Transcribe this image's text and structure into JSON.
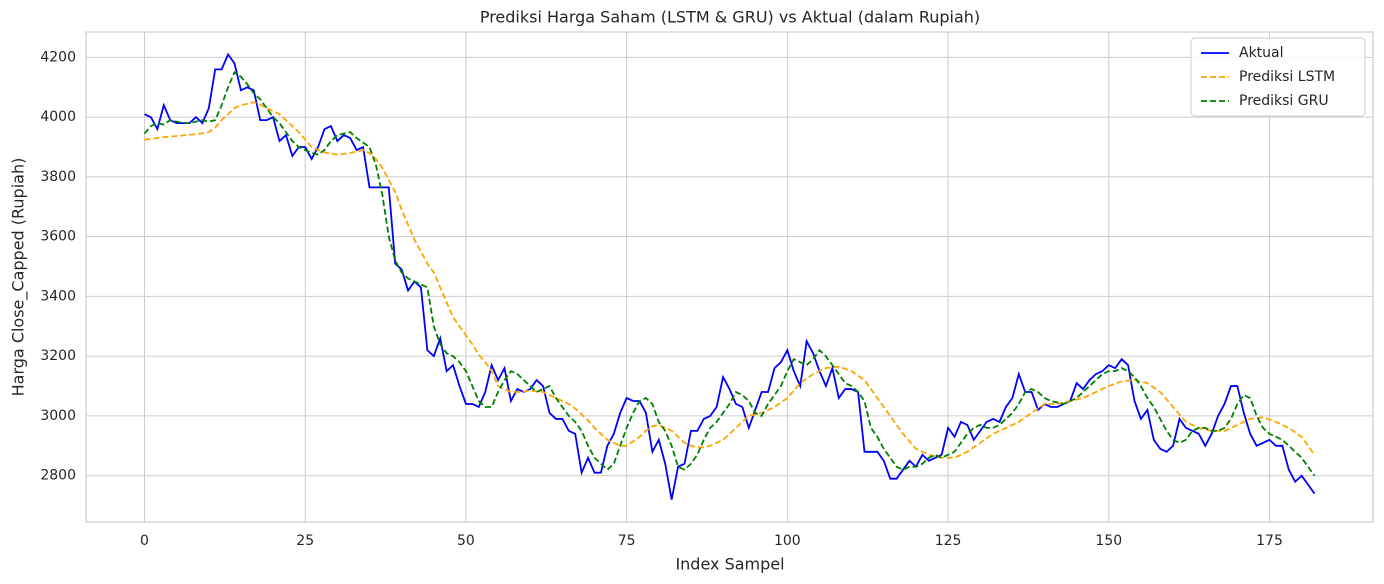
{
  "chart_data": {
    "type": "line",
    "title": "Prediksi Harga Saham (LSTM & GRU) vs Aktual (dalam Rupiah)",
    "xlabel": "Index Sampel",
    "ylabel": "Harga Close_Capped (Rupiah)",
    "x": [
      0,
      1,
      2,
      3,
      4,
      5,
      6,
      7,
      8,
      9,
      10,
      11,
      12,
      13,
      14,
      15,
      16,
      17,
      18,
      19,
      20,
      21,
      22,
      23,
      24,
      25,
      26,
      27,
      28,
      29,
      30,
      31,
      32,
      33,
      34,
      35,
      36,
      37,
      38,
      39,
      40,
      41,
      42,
      43,
      44,
      45,
      46,
      47,
      48,
      49,
      50,
      51,
      52,
      53,
      54,
      55,
      56,
      57,
      58,
      59,
      60,
      61,
      62,
      63,
      64,
      65,
      66,
      67,
      68,
      69,
      70,
      71,
      72,
      73,
      74,
      75,
      76,
      77,
      78,
      79,
      80,
      81,
      82,
      83,
      84,
      85,
      86,
      87,
      88,
      89,
      90,
      91,
      92,
      93,
      94,
      95,
      96,
      97,
      98,
      99,
      100,
      101,
      102,
      103,
      104,
      105,
      106,
      107,
      108,
      109,
      110,
      111,
      112,
      113,
      114,
      115,
      116,
      117,
      118,
      119,
      120,
      121,
      122,
      123,
      124,
      125,
      126,
      127,
      128,
      129,
      130,
      131,
      132,
      133,
      134,
      135,
      136,
      137,
      138,
      139,
      140,
      141,
      142,
      143,
      144,
      145,
      146,
      147,
      148,
      149,
      150,
      151,
      152,
      153,
      154,
      155,
      156,
      157,
      158,
      159,
      160,
      161,
      162,
      163,
      164,
      165,
      166,
      167,
      168,
      169,
      170,
      171,
      172,
      173,
      174,
      175,
      176,
      177,
      178,
      179,
      180,
      181,
      182
    ],
    "series": [
      {
        "name": "Aktual",
        "color": "#0000ff",
        "linestyle": "solid",
        "values": [
          4010,
          4000,
          3960,
          4040,
          3990,
          3980,
          3980,
          3980,
          4000,
          3980,
          4030,
          4160,
          4160,
          4210,
          4180,
          4090,
          4100,
          4090,
          3990,
          3990,
          4000,
          3920,
          3940,
          3870,
          3900,
          3900,
          3860,
          3900,
          3960,
          3970,
          3920,
          3940,
          3930,
          3890,
          3900,
          3765,
          3765,
          3765,
          3765,
          3510,
          3490,
          3420,
          3450,
          3430,
          3220,
          3200,
          3260,
          3150,
          3170,
          3100,
          3040,
          3040,
          3030,
          3080,
          3170,
          3120,
          3160,
          3050,
          3090,
          3080,
          3090,
          3120,
          3100,
          3010,
          2990,
          2990,
          2950,
          2940,
          2810,
          2860,
          2810,
          2810,
          2900,
          2940,
          3010,
          3060,
          3050,
          3050,
          3010,
          2880,
          2920,
          2840,
          2720,
          2830,
          2840,
          2950,
          2950,
          2990,
          3000,
          3030,
          3130,
          3090,
          3040,
          3030,
          2960,
          3020,
          3080,
          3080,
          3160,
          3180,
          3220,
          3150,
          3100,
          3250,
          3210,
          3150,
          3100,
          3160,
          3060,
          3090,
          3090,
          3080,
          2880,
          2880,
          2880,
          2850,
          2790,
          2790,
          2820,
          2850,
          2830,
          2870,
          2850,
          2860,
          2870,
          2960,
          2930,
          2980,
          2970,
          2920,
          2950,
          2980,
          2990,
          2980,
          3030,
          3060,
          3140,
          3080,
          3080,
          3020,
          3040,
          3030,
          3030,
          3040,
          3050,
          3110,
          3090,
          3120,
          3140,
          3150,
          3170,
          3160,
          3190,
          3170,
          3050,
          2990,
          3020,
          2920,
          2890,
          2880,
          2900,
          2990,
          2960,
          2950,
          2940,
          2900,
          2940,
          3000,
          3040,
          3100,
          3100,
          3010,
          2940,
          2900,
          2910,
          2920,
          2900,
          2900,
          2820,
          2780,
          2800,
          2770,
          2740
        ]
      },
      {
        "name": "Prediksi LSTM",
        "color": "#ffa500",
        "linestyle": "dashed",
        "values": [
          3925,
          3927,
          3930,
          3933,
          3935,
          3937,
          3939,
          3941,
          3943,
          3946,
          3950,
          3965,
          3990,
          4010,
          4030,
          4040,
          4045,
          4050,
          4042,
          4030,
          4020,
          4010,
          3990,
          3970,
          3950,
          3925,
          3900,
          3890,
          3882,
          3878,
          3875,
          3877,
          3880,
          3885,
          3890,
          3880,
          3860,
          3830,
          3790,
          3750,
          3690,
          3640,
          3590,
          3550,
          3510,
          3480,
          3430,
          3380,
          3330,
          3300,
          3270,
          3240,
          3205,
          3180,
          3150,
          3100,
          3090,
          3080,
          3080,
          3082,
          3085,
          3082,
          3080,
          3070,
          3060,
          3050,
          3040,
          3025,
          3005,
          2985,
          2960,
          2940,
          2920,
          2910,
          2900,
          2900,
          2915,
          2930,
          2950,
          2965,
          2970,
          2960,
          2950,
          2930,
          2910,
          2900,
          2895,
          2895,
          2900,
          2910,
          2920,
          2940,
          2960,
          2980,
          3000,
          3005,
          3010,
          3020,
          3030,
          3045,
          3060,
          3085,
          3110,
          3125,
          3140,
          3150,
          3160,
          3163,
          3165,
          3158,
          3150,
          3135,
          3120,
          3090,
          3060,
          3030,
          3000,
          2970,
          2940,
          2915,
          2890,
          2880,
          2870,
          2865,
          2860,
          2860,
          2860,
          2870,
          2880,
          2895,
          2910,
          2925,
          2940,
          2950,
          2960,
          2970,
          2980,
          2995,
          3010,
          3025,
          3040,
          3040,
          3040,
          3045,
          3050,
          3055,
          3060,
          3070,
          3080,
          3090,
          3100,
          3108,
          3115,
          3118,
          3120,
          3115,
          3110,
          3095,
          3080,
          3055,
          3030,
          3005,
          2980,
          2970,
          2960,
          2955,
          2950,
          2950,
          2950,
          2960,
          2970,
          2980,
          2990,
          2993,
          2995,
          2988,
          2980,
          2970,
          2960,
          2945,
          2930,
          2900,
          2870
        ]
      },
      {
        "name": "Prediksi GRU",
        "color": "#008000",
        "linestyle": "dashed",
        "values": [
          3945,
          3970,
          3980,
          3975,
          3990,
          3985,
          3980,
          3980,
          3985,
          3990,
          3985,
          3990,
          4040,
          4100,
          4150,
          4135,
          4110,
          4080,
          4060,
          4030,
          4000,
          3980,
          3950,
          3920,
          3900,
          3890,
          3880,
          3875,
          3890,
          3920,
          3940,
          3945,
          3950,
          3930,
          3915,
          3900,
          3840,
          3740,
          3600,
          3520,
          3480,
          3460,
          3450,
          3440,
          3430,
          3300,
          3240,
          3210,
          3200,
          3180,
          3150,
          3100,
          3050,
          3030,
          3030,
          3080,
          3120,
          3150,
          3140,
          3120,
          3100,
          3080,
          3090,
          3100,
          3060,
          3030,
          3000,
          2980,
          2950,
          2900,
          2860,
          2840,
          2820,
          2840,
          2900,
          2960,
          3010,
          3050,
          3060,
          3040,
          2980,
          2950,
          2900,
          2830,
          2820,
          2840,
          2870,
          2920,
          2960,
          2980,
          3010,
          3040,
          3080,
          3070,
          3050,
          3010,
          3000,
          3040,
          3070,
          3100,
          3150,
          3190,
          3180,
          3170,
          3190,
          3220,
          3200,
          3170,
          3140,
          3110,
          3100,
          3080,
          3050,
          2960,
          2930,
          2890,
          2860,
          2830,
          2820,
          2830,
          2830,
          2840,
          2860,
          2870,
          2860,
          2870,
          2880,
          2910,
          2940,
          2960,
          2970,
          2960,
          2960,
          2970,
          2990,
          3010,
          3040,
          3080,
          3090,
          3080,
          3060,
          3050,
          3045,
          3040,
          3050,
          3060,
          3080,
          3100,
          3120,
          3140,
          3150,
          3150,
          3160,
          3150,
          3130,
          3100,
          3060,
          3030,
          2990,
          2950,
          2920,
          2910,
          2920,
          2950,
          2960,
          2960,
          2950,
          2950,
          2960,
          2990,
          3040,
          3070,
          3060,
          3000,
          2960,
          2940,
          2930,
          2920,
          2900,
          2880,
          2860,
          2830,
          2800
        ]
      }
    ],
    "xlim": [
      -9.1,
      191.1
    ],
    "ylim": [
      2645,
      4285
    ],
    "xticks": [
      0,
      25,
      50,
      75,
      100,
      125,
      150,
      175
    ],
    "yticks": [
      2800,
      3000,
      3200,
      3400,
      3600,
      3800,
      4000,
      4200
    ],
    "grid": true,
    "legend": "upper right"
  }
}
